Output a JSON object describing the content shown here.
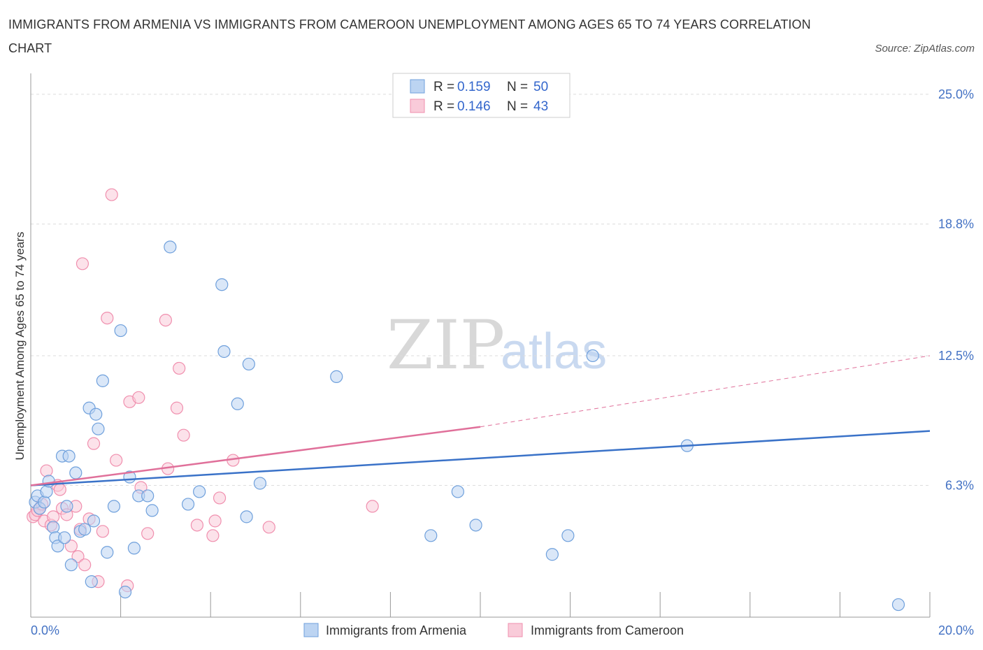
{
  "title": "IMMIGRANTS FROM ARMENIA VS IMMIGRANTS FROM CAMEROON UNEMPLOYMENT AMONG AGES 65 TO 74 YEARS CORRELATION CHART",
  "source": "Source: ZipAtlas.com",
  "watermark": {
    "zip": "ZIP",
    "atlas": "atlas"
  },
  "legend": {
    "r_label": "R =",
    "n_label": "N =",
    "rows": [
      {
        "r": "0.159",
        "n": "50"
      },
      {
        "r": "0.146",
        "n": "43"
      }
    ]
  },
  "chart_data": {
    "type": "scatter",
    "title": "IMMIGRANTS FROM ARMENIA VS IMMIGRANTS FROM CAMEROON UNEMPLOYMENT AMONG AGES 65 TO 74 YEARS CORRELATION CHART",
    "xlabel": "",
    "ylabel": "Unemployment Among Ages 65 to 74 years",
    "xlim": [
      0,
      20
    ],
    "ylim": [
      0,
      26
    ],
    "x_tick_labels": [
      "0.0%",
      "20.0%"
    ],
    "y_ticks": [
      6.3,
      12.5,
      18.8,
      25.0
    ],
    "y_tick_labels": [
      "6.3%",
      "12.5%",
      "18.8%",
      "25.0%"
    ],
    "grid": true,
    "colors": {
      "armenia": "#6fa0dc",
      "cameroon": "#f08fae",
      "armenia_line": "#3a72c8",
      "cameroon_line": "#e0709a"
    },
    "series": [
      {
        "name": "Immigrants from Armenia",
        "x": [
          0.1,
          0.15,
          0.2,
          0.3,
          0.35,
          0.4,
          0.5,
          0.55,
          0.6,
          0.7,
          0.75,
          0.8,
          0.85,
          0.9,
          1.0,
          1.1,
          1.2,
          1.3,
          1.35,
          1.4,
          1.45,
          1.5,
          1.6,
          1.7,
          1.85,
          2.0,
          2.1,
          2.2,
          2.3,
          2.4,
          2.6,
          2.7,
          3.1,
          3.5,
          3.75,
          4.25,
          4.3,
          4.6,
          4.8,
          4.85,
          5.1,
          6.8,
          8.9,
          9.5,
          9.9,
          11.6,
          11.95,
          12.5,
          14.6,
          19.3
        ],
        "y": [
          5.5,
          5.8,
          5.2,
          5.5,
          6.0,
          6.5,
          4.3,
          3.8,
          3.4,
          7.7,
          3.8,
          5.3,
          7.7,
          2.5,
          6.9,
          4.1,
          4.2,
          10.0,
          1.7,
          4.6,
          9.7,
          9.0,
          11.3,
          3.1,
          5.3,
          13.7,
          1.2,
          6.7,
          3.3,
          5.8,
          5.8,
          5.1,
          17.7,
          5.4,
          6.0,
          15.9,
          12.7,
          10.2,
          4.8,
          12.1,
          6.4,
          11.5,
          3.9,
          6.0,
          4.4,
          3.0,
          3.9,
          12.5,
          8.2,
          0.6
        ]
      },
      {
        "name": "Immigrants from Cameroon",
        "x": [
          0.05,
          0.1,
          0.15,
          0.2,
          0.25,
          0.3,
          0.35,
          0.45,
          0.5,
          0.6,
          0.65,
          0.7,
          0.8,
          0.9,
          1.0,
          1.05,
          1.1,
          1.15,
          1.2,
          1.3,
          1.4,
          1.5,
          1.6,
          1.7,
          1.8,
          1.9,
          2.15,
          2.2,
          2.4,
          2.45,
          2.6,
          3.0,
          3.05,
          3.25,
          3.3,
          3.4,
          3.7,
          4.05,
          4.1,
          4.2,
          4.5,
          5.3,
          7.6
        ],
        "y": [
          4.8,
          4.9,
          5.1,
          5.2,
          5.4,
          4.6,
          7.0,
          4.4,
          4.8,
          6.3,
          6.1,
          5.2,
          4.9,
          3.4,
          5.3,
          2.9,
          4.2,
          16.9,
          2.5,
          4.7,
          8.3,
          1.7,
          4.1,
          14.3,
          20.2,
          7.5,
          1.5,
          10.3,
          10.5,
          6.2,
          4.0,
          14.2,
          7.1,
          10.0,
          11.9,
          8.7,
          4.4,
          3.9,
          4.6,
          5.7,
          7.5,
          4.3,
          5.3
        ]
      }
    ],
    "trend_lines": [
      {
        "series": "Immigrants from Armenia",
        "x": [
          0,
          20
        ],
        "y": [
          6.3,
          8.9
        ],
        "style": "solid"
      },
      {
        "series": "Immigrants from Cameroon",
        "x": [
          0,
          10
        ],
        "y": [
          6.3,
          9.1
        ],
        "style": "solid"
      },
      {
        "series": "Immigrants from Cameroon",
        "x": [
          10,
          20
        ],
        "y": [
          9.1,
          12.5
        ],
        "style": "dashed"
      }
    ]
  }
}
